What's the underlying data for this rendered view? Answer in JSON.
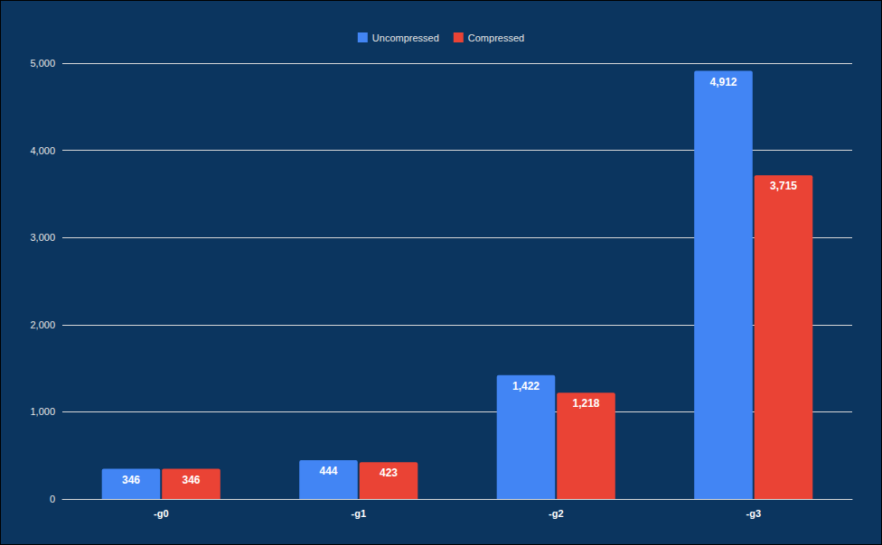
{
  "chart_data": {
    "type": "bar",
    "categories": [
      "-g0",
      "-g1",
      "-g2",
      "-g3"
    ],
    "series": [
      {
        "name": "Uncompressed",
        "color": "#4285f4",
        "values": [
          346,
          444,
          1422,
          4912
        ],
        "value_labels": [
          "346",
          "444",
          "1,422",
          "4,912"
        ]
      },
      {
        "name": "Compressed",
        "color": "#ea4335",
        "values": [
          346,
          423,
          1218,
          3715
        ],
        "value_labels": [
          "346",
          "423",
          "1,218",
          "3,715"
        ]
      }
    ],
    "ylim": [
      0,
      5000
    ],
    "yticks": [
      0,
      {
        "value": 1000,
        "label": "1,000"
      },
      {
        "value": 2000,
        "label": "2,000"
      },
      {
        "value": 3000,
        "label": "3,000"
      },
      {
        "value": 4000,
        "label": "4,000"
      },
      {
        "value": 5000,
        "label": "5,000"
      }
    ],
    "grid": true,
    "legend": "top",
    "data_labels": true
  }
}
